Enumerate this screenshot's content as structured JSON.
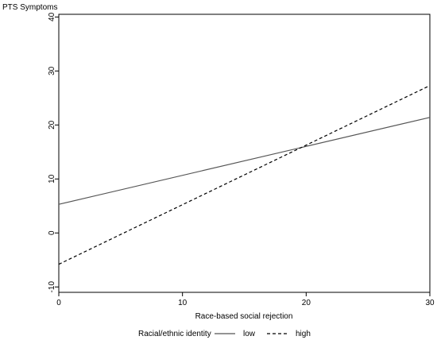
{
  "chart_data": {
    "type": "line",
    "title": "",
    "xlabel": "Race-based social rejection",
    "ylabel": "PTS Symptoms",
    "xlim": [
      0,
      30
    ],
    "ylim": [
      -11,
      40.5
    ],
    "x_ticks": [
      0,
      10,
      20,
      30
    ],
    "y_ticks": [
      -10,
      0,
      10,
      20,
      30,
      40
    ],
    "grid": false,
    "legend": {
      "title": "Racial/ethnic identity",
      "position": "bottom"
    },
    "series": [
      {
        "name": "low",
        "line_style": "solid",
        "color": "#555555",
        "x": [
          0,
          30
        ],
        "y": [
          5.3,
          21.4
        ]
      },
      {
        "name": "high",
        "line_style": "dashed",
        "color": "#000000",
        "x": [
          0,
          30
        ],
        "y": [
          -5.8,
          27.3
        ]
      }
    ]
  }
}
